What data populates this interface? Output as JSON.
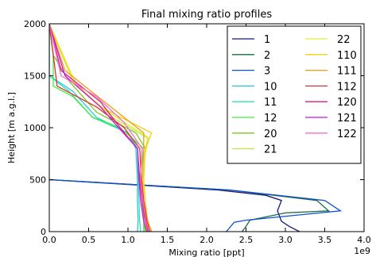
{
  "chart_data": {
    "type": "line",
    "title": "Final mixing ratio profiles",
    "xlabel": "Mixing  ratio [ppt]",
    "ylabel": "Height [m a.g.l.]",
    "x_exponent_label": "1e9",
    "xlim": [
      0.0,
      4.0
    ],
    "ylim": [
      0,
      2000
    ],
    "x_ticks": [
      "0.0",
      "0.5",
      "1.0",
      "1.5",
      "2.0",
      "2.5",
      "3.0",
      "3.5",
      "4.0"
    ],
    "y_ticks": [
      "0",
      "500",
      "1000",
      "1500",
      "2000"
    ],
    "grid": false,
    "legend_position": "top-right",
    "legend_columns": 2,
    "series": [
      {
        "name": "1",
        "color": "#191970",
        "points": [
          [
            3.18,
            0
          ],
          [
            3.05,
            50
          ],
          [
            2.95,
            100
          ],
          [
            2.9,
            200
          ],
          [
            2.95,
            300
          ],
          [
            2.75,
            350
          ],
          [
            2.15,
            400
          ],
          [
            0.0,
            500
          ]
        ]
      },
      {
        "name": "2",
        "color": "#1c6b3c",
        "points": [
          [
            2.45,
            0
          ],
          [
            2.5,
            50
          ],
          [
            2.55,
            110
          ],
          [
            3.0,
            180
          ],
          [
            3.55,
            200
          ],
          [
            3.4,
            300
          ],
          [
            2.3,
            400
          ],
          [
            0.0,
            500
          ]
        ]
      },
      {
        "name": "3",
        "color": "#0d4fd1",
        "points": [
          [
            2.25,
            0
          ],
          [
            2.35,
            90
          ],
          [
            2.5,
            110
          ],
          [
            3.7,
            200
          ],
          [
            3.5,
            300
          ],
          [
            2.3,
            400
          ],
          [
            0.0,
            500
          ]
        ]
      },
      {
        "name": "10",
        "color": "#23c8e0",
        "points": [
          [
            1.12,
            0
          ],
          [
            1.13,
            100
          ],
          [
            1.12,
            300
          ],
          [
            1.12,
            500
          ],
          [
            1.1,
            800
          ],
          [
            1.0,
            950
          ],
          [
            0.6,
            1100
          ],
          [
            0.3,
            1350
          ],
          [
            0.0,
            1500
          ],
          [
            0.0,
            2000
          ]
        ]
      },
      {
        "name": "11",
        "color": "#2ee0b4",
        "points": [
          [
            1.16,
            0
          ],
          [
            1.15,
            100
          ],
          [
            1.14,
            300
          ],
          [
            1.13,
            500
          ],
          [
            1.12,
            800
          ],
          [
            1.0,
            950
          ],
          [
            0.55,
            1100
          ],
          [
            0.25,
            1350
          ],
          [
            0.0,
            1500
          ],
          [
            0.0,
            2000
          ]
        ]
      },
      {
        "name": "12",
        "color": "#3ef03c",
        "points": [
          [
            1.2,
            0
          ],
          [
            1.2,
            100
          ],
          [
            1.18,
            300
          ],
          [
            1.15,
            500
          ],
          [
            1.2,
            800
          ],
          [
            0.9,
            1000
          ],
          [
            0.55,
            1100
          ],
          [
            0.3,
            1300
          ],
          [
            0.05,
            1400
          ],
          [
            0.05,
            1700
          ],
          [
            0.0,
            2000
          ]
        ]
      },
      {
        "name": "20",
        "color": "#7ac81e",
        "points": [
          [
            1.22,
            0
          ],
          [
            1.2,
            100
          ],
          [
            1.2,
            300
          ],
          [
            1.18,
            500
          ],
          [
            1.22,
            800
          ],
          [
            1.1,
            950
          ],
          [
            0.6,
            1150
          ],
          [
            0.25,
            1450
          ],
          [
            0.05,
            1700
          ],
          [
            0.0,
            2000
          ]
        ]
      },
      {
        "name": "21",
        "color": "#b8f03a",
        "points": [
          [
            1.25,
            0
          ],
          [
            1.22,
            100
          ],
          [
            1.2,
            300
          ],
          [
            1.18,
            500
          ],
          [
            1.2,
            700
          ],
          [
            1.25,
            900
          ],
          [
            0.8,
            1100
          ],
          [
            0.3,
            1450
          ],
          [
            0.0,
            2000
          ]
        ]
      },
      {
        "name": "22",
        "color": "#e0f03a",
        "points": [
          [
            1.28,
            0
          ],
          [
            1.24,
            100
          ],
          [
            1.2,
            300
          ],
          [
            1.2,
            500
          ],
          [
            1.2,
            700
          ],
          [
            1.27,
            900
          ],
          [
            0.75,
            1150
          ],
          [
            0.35,
            1400
          ],
          [
            0.0,
            2000
          ]
        ]
      },
      {
        "name": "110",
        "color": "#f0d018",
        "points": [
          [
            1.3,
            0
          ],
          [
            1.25,
            100
          ],
          [
            1.22,
            300
          ],
          [
            1.2,
            500
          ],
          [
            1.22,
            800
          ],
          [
            1.3,
            950
          ],
          [
            0.65,
            1200
          ],
          [
            0.3,
            1450
          ],
          [
            0.0,
            2000
          ]
        ]
      },
      {
        "name": "111",
        "color": "#f09a18",
        "points": [
          [
            1.3,
            0
          ],
          [
            1.25,
            100
          ],
          [
            1.2,
            300
          ],
          [
            1.18,
            500
          ],
          [
            1.2,
            800
          ],
          [
            1.2,
            950
          ],
          [
            0.7,
            1250
          ],
          [
            0.2,
            1550
          ],
          [
            0.0,
            2000
          ]
        ]
      },
      {
        "name": "112",
        "color": "#e03030",
        "points": [
          [
            1.28,
            0
          ],
          [
            1.24,
            100
          ],
          [
            1.2,
            300
          ],
          [
            1.17,
            500
          ],
          [
            1.15,
            800
          ],
          [
            0.95,
            1000
          ],
          [
            0.6,
            1200
          ],
          [
            0.1,
            1400
          ],
          [
            0.05,
            1700
          ],
          [
            0.0,
            2000
          ]
        ]
      },
      {
        "name": "120",
        "color": "#e0188c",
        "points": [
          [
            1.26,
            0
          ],
          [
            1.22,
            100
          ],
          [
            1.18,
            300
          ],
          [
            1.15,
            500
          ],
          [
            1.12,
            800
          ],
          [
            0.9,
            1000
          ],
          [
            0.65,
            1250
          ],
          [
            0.15,
            1550
          ],
          [
            0.0,
            2000
          ]
        ]
      },
      {
        "name": "121",
        "color": "#c818e0",
        "points": [
          [
            1.24,
            0
          ],
          [
            1.2,
            100
          ],
          [
            1.16,
            300
          ],
          [
            1.14,
            500
          ],
          [
            1.12,
            800
          ],
          [
            0.88,
            1000
          ],
          [
            0.65,
            1200
          ],
          [
            0.2,
            1500
          ],
          [
            0.0,
            2000
          ]
        ]
      },
      {
        "name": "122",
        "color": "#f070c8",
        "points": [
          [
            1.27,
            0
          ],
          [
            1.23,
            100
          ],
          [
            1.19,
            300
          ],
          [
            1.16,
            500
          ],
          [
            1.18,
            800
          ],
          [
            0.95,
            1050
          ],
          [
            0.6,
            1300
          ],
          [
            0.15,
            1500
          ],
          [
            0.0,
            2000
          ]
        ]
      }
    ]
  }
}
